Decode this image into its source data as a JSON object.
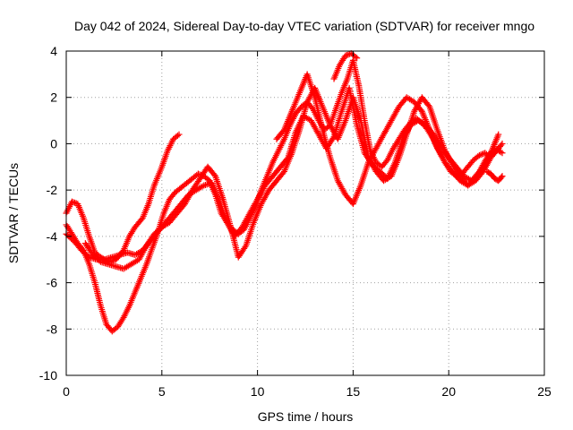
{
  "chart_data": {
    "type": "scatter",
    "title": "Day 042 of 2024, Sidereal Day-to-day VTEC variation (SDTVAR) for receiver mngo",
    "xlabel": "GPS time / hours",
    "ylabel": "SDTVAR / TECUs",
    "xlim": [
      0,
      25
    ],
    "ylim": [
      -10,
      4
    ],
    "xticks": [
      "0",
      "5",
      "10",
      "15",
      "20",
      "25"
    ],
    "yticks": [
      "-10",
      "-8",
      "-6",
      "-4",
      "-2",
      "0",
      "2",
      "4"
    ],
    "grid": true,
    "marker": "+",
    "color": "#ff0000",
    "series": [
      {
        "x": [
          0.0,
          0.3,
          0.6,
          0.9,
          1.2,
          1.5,
          1.8,
          2.0,
          2.3,
          2.6,
          3.0,
          3.3,
          3.6,
          4.0,
          4.3,
          4.6,
          5.0,
          5.3,
          5.6,
          5.9
        ],
        "y": [
          -3.0,
          -2.5,
          -2.6,
          -3.2,
          -4.0,
          -4.7,
          -4.9,
          -5.0,
          -5.1,
          -5.0,
          -4.6,
          -4.0,
          -3.6,
          -3.2,
          -2.6,
          -1.8,
          -1.0,
          -0.3,
          0.2,
          0.4
        ]
      },
      {
        "x": [
          0.0,
          0.3,
          0.6,
          0.9,
          1.2,
          1.5,
          1.8,
          2.1,
          2.4,
          2.7,
          3.0,
          3.3,
          3.6,
          3.9,
          4.2,
          4.5,
          4.8,
          5.1,
          5.4,
          5.7,
          6.0,
          6.3,
          6.6,
          6.9,
          7.2,
          7.5,
          7.8,
          8.1,
          8.4,
          8.7,
          9.0,
          9.3,
          9.6,
          9.9,
          10.2,
          10.5,
          10.8,
          11.1,
          11.4,
          11.7,
          12.0,
          12.3,
          12.6,
          12.9,
          13.2,
          13.5,
          13.8,
          14.1,
          14.4,
          14.7,
          15.0,
          15.3,
          15.6,
          15.9,
          16.2,
          16.5,
          16.8,
          17.1,
          17.4,
          17.7,
          18.0,
          18.3,
          18.6,
          18.9,
          19.2,
          19.5,
          19.8,
          20.1,
          20.4,
          20.7,
          21.0,
          21.3,
          21.6,
          21.9,
          22.2,
          22.5,
          22.8
        ],
        "y": [
          -3.5,
          -3.9,
          -4.3,
          -4.6,
          -5.2,
          -6.0,
          -7.0,
          -7.8,
          -8.1,
          -7.9,
          -7.5,
          -7.0,
          -6.4,
          -5.8,
          -5.2,
          -4.5,
          -3.8,
          -3.0,
          -2.4,
          -2.1,
          -1.9,
          -1.7,
          -1.5,
          -1.3,
          -1.4,
          -1.6,
          -2.2,
          -3.0,
          -3.4,
          -3.7,
          -3.9,
          -3.7,
          -3.2,
          -2.7,
          -2.0,
          -1.4,
          -0.8,
          -0.3,
          0.2,
          0.8,
          1.3,
          1.6,
          1.8,
          1.5,
          1.0,
          0.6,
          0.8,
          1.5,
          2.2,
          2.8,
          3.6,
          2.5,
          1.0,
          -0.3,
          -0.8,
          -1.0,
          -0.7,
          -0.2,
          0.2,
          0.6,
          0.9,
          1.1,
          0.9,
          0.6,
          0.2,
          -0.3,
          -0.8,
          -1.2,
          -1.4,
          -1.3,
          -1.0,
          -0.7,
          -0.5,
          -0.4,
          -0.6,
          -0.3,
          0.0
        ]
      },
      {
        "x": [
          0.0,
          0.4,
          0.8,
          1.2,
          1.6,
          2.0,
          2.4,
          2.8,
          3.2,
          3.6,
          4.0,
          4.4,
          4.8,
          5.2,
          5.6,
          6.0,
          6.4,
          6.8,
          7.2,
          7.6,
          8.0,
          8.4,
          8.8,
          9.2,
          9.6,
          10.0,
          10.4,
          10.8,
          11.2,
          11.6,
          12.0,
          12.4,
          12.8,
          13.2,
          13.6,
          14.0,
          14.4,
          14.8,
          15.2,
          15.6,
          16.0,
          16.4,
          16.8,
          17.2,
          17.6,
          18.0,
          18.4,
          18.8,
          19.2,
          19.6,
          20.0,
          20.4,
          20.8,
          21.2,
          21.6,
          22.0,
          22.4,
          22.8
        ],
        "y": [
          -3.9,
          -4.2,
          -4.6,
          -4.9,
          -5.0,
          -5.0,
          -4.9,
          -4.8,
          -4.7,
          -4.8,
          -4.6,
          -4.2,
          -3.8,
          -3.4,
          -3.0,
          -2.6,
          -2.2,
          -2.0,
          -1.8,
          -1.7,
          -2.5,
          -3.4,
          -4.0,
          -3.6,
          -3.0,
          -2.4,
          -1.8,
          -1.4,
          -1.0,
          -0.6,
          0.5,
          1.2,
          1.0,
          0.4,
          -0.2,
          0.3,
          1.4,
          2.4,
          0.8,
          -0.4,
          -0.9,
          -1.2,
          -1.5,
          -0.8,
          0.2,
          0.8,
          1.0,
          0.8,
          0.4,
          -0.1,
          -0.6,
          -1.0,
          -1.4,
          -1.6,
          -1.2,
          -0.6,
          -0.2,
          -0.4
        ]
      },
      {
        "x": [
          1.0,
          1.4,
          1.8,
          2.2,
          2.6,
          3.0,
          3.4,
          3.8,
          4.2,
          4.6,
          5.0,
          5.4,
          5.8,
          6.2,
          6.6,
          7.0,
          7.4,
          7.8,
          8.2,
          8.6,
          9.0,
          9.4,
          9.8,
          10.2,
          10.6,
          11.0,
          11.4,
          11.8,
          12.2,
          12.6,
          13.0,
          13.4,
          13.8,
          14.2,
          14.6,
          15.0,
          15.4,
          15.8,
          16.2,
          16.6,
          17.0,
          17.4,
          17.8,
          18.2,
          18.6,
          19.0,
          19.4,
          19.8,
          20.2,
          20.6,
          21.0,
          21.4,
          21.8,
          22.2,
          22.6
        ],
        "y": [
          -4.3,
          -4.8,
          -5.1,
          -5.2,
          -5.3,
          -5.4,
          -5.2,
          -5.0,
          -4.4,
          -3.9,
          -3.6,
          -3.4,
          -3.0,
          -2.6,
          -2.0,
          -1.5,
          -1.0,
          -1.4,
          -2.4,
          -3.6,
          -4.9,
          -4.4,
          -3.4,
          -2.6,
          -2.0,
          -1.6,
          -1.2,
          -0.4,
          0.6,
          1.8,
          2.4,
          1.6,
          0.8,
          0.2,
          1.0,
          2.0,
          1.0,
          -0.6,
          -1.2,
          -1.6,
          -1.4,
          -0.6,
          0.4,
          1.4,
          2.0,
          1.6,
          0.6,
          -0.3,
          -0.9,
          -1.4,
          -1.8,
          -1.6,
          -1.2,
          -0.6,
          -0.2
        ]
      },
      {
        "x": [
          11.0,
          11.4,
          11.8,
          12.2,
          12.6,
          13.0,
          13.4,
          13.8,
          14.2,
          14.6,
          15.0,
          15.4,
          15.8,
          16.2,
          16.6,
          17.0,
          17.4,
          17.8,
          18.2,
          18.6,
          19.0,
          19.4,
          19.8,
          20.2,
          20.6,
          21.0,
          21.4,
          21.8,
          22.2,
          22.6
        ],
        "y": [
          0.2,
          0.6,
          1.4,
          2.2,
          3.0,
          2.0,
          0.6,
          -0.6,
          -1.6,
          -2.2,
          -2.6,
          -1.8,
          -0.8,
          -0.2,
          0.4,
          1.0,
          1.6,
          2.0,
          1.8,
          1.4,
          0.6,
          -0.2,
          -0.8,
          -1.2,
          -1.6,
          -1.8,
          -1.5,
          -1.0,
          -0.4,
          0.4
        ]
      },
      {
        "x": [
          14.0,
          14.3,
          14.6,
          14.9,
          15.2
        ],
        "y": [
          2.8,
          3.4,
          3.8,
          3.9,
          3.7
        ]
      },
      {
        "x": [
          22.0,
          22.2,
          22.4,
          22.6,
          22.8
        ],
        "y": [
          -1.2,
          -1.3,
          -1.5,
          -1.6,
          -1.4
        ]
      }
    ]
  }
}
